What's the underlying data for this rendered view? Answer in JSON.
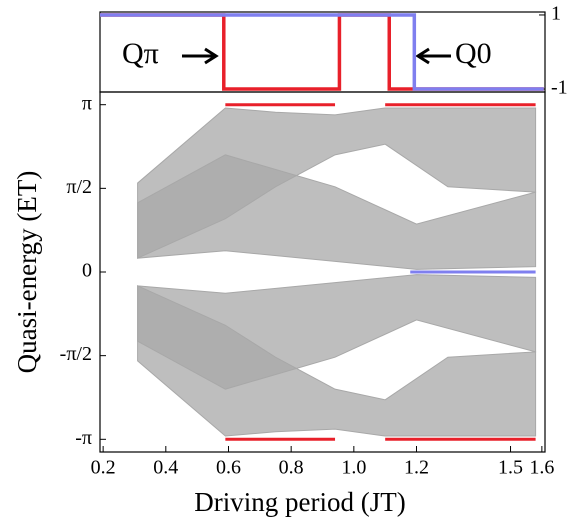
{
  "chart_data": [
    {
      "type": "step",
      "xlim": [
        0.19,
        1.61
      ],
      "ylim": [
        1.08,
        -1.08
      ],
      "yticks": [
        -1,
        1
      ],
      "series": [
        {
          "name": "Qπ",
          "color": "#e8202a",
          "x": [
            0.19,
            0.585,
            0.585,
            0.954,
            0.954,
            1.113,
            1.113,
            1.606
          ],
          "values": [
            1,
            1,
            -1,
            -1,
            1,
            1,
            -1,
            -1
          ]
        },
        {
          "name": "Q0",
          "color": "#7f7fef",
          "x": [
            0.19,
            1.193,
            1.193,
            1.606
          ],
          "values": [
            1,
            1,
            -1,
            -1
          ]
        }
      ]
    },
    {
      "type": "band",
      "xlabel": "Driving period (JT)",
      "ylabel": "Quasi-energy (ET)",
      "xlim": [
        0.19,
        1.61
      ],
      "ylim": [
        -3.38,
        3.38
      ],
      "xticks": [
        0.2,
        0.4,
        0.6,
        0.8,
        {
          "value": 1.0,
          "label": "1.0"
        },
        1.2,
        1.5,
        1.6
      ],
      "yticks": [
        {
          "value": 3.1416,
          "label": "π"
        },
        {
          "value": 1.5708,
          "label": "π/2"
        },
        0,
        {
          "value": -1.5708,
          "label": "-π/2"
        },
        {
          "value": -3.1416,
          "label": "-π"
        }
      ],
      "bands": [
        {
          "color": "#a8a8a8",
          "x": [
            0.31,
            0.59,
            0.75,
            0.94,
            1.1,
            1.3,
            1.58
          ],
          "upper": [
            1.67,
            3.08,
            3.0,
            2.95,
            3.08,
            3.08,
            3.08
          ],
          "lower": [
            0.26,
            1.0,
            1.6,
            2.2,
            2.4,
            1.6,
            1.5
          ]
        },
        {
          "color": "#a8a8a8",
          "x": [
            0.31,
            0.59,
            0.94,
            1.2,
            1.58
          ],
          "upper": [
            1.3,
            2.2,
            1.6,
            0.9,
            1.5
          ],
          "lower": [
            0.26,
            0.4,
            0.2,
            0.05,
            0.1
          ]
        },
        {
          "color": "#a8a8a8",
          "x": [
            0.31,
            0.59,
            0.75,
            0.94,
            1.1,
            1.3,
            1.58
          ],
          "upper": [
            -0.26,
            -1.0,
            -1.6,
            -2.2,
            -2.4,
            -1.6,
            -1.5
          ],
          "lower": [
            -1.67,
            -3.08,
            -3.0,
            -2.95,
            -3.08,
            -3.08,
            -3.08
          ]
        },
        {
          "color": "#a8a8a8",
          "x": [
            0.31,
            0.59,
            0.94,
            1.2,
            1.58
          ],
          "upper": [
            -0.26,
            -0.4,
            -0.2,
            -0.05,
            -0.1
          ],
          "lower": [
            -1.3,
            -2.2,
            -1.6,
            -0.9,
            -1.5
          ]
        }
      ],
      "series": [
        {
          "color": "#e8202a",
          "x": [
            0.59,
            0.94
          ],
          "values": [
            3.1416,
            3.1416
          ]
        },
        {
          "color": "#e8202a",
          "x": [
            1.1,
            1.58
          ],
          "values": [
            3.1416,
            3.1416
          ]
        },
        {
          "color": "#e8202a",
          "x": [
            0.59,
            0.94
          ],
          "values": [
            -3.1416,
            -3.1416
          ]
        },
        {
          "color": "#e8202a",
          "x": [
            1.1,
            1.58
          ],
          "values": [
            -3.1416,
            -3.1416
          ]
        },
        {
          "color": "#7f7fef",
          "x": [
            1.18,
            1.58
          ],
          "values": [
            0,
            0
          ]
        }
      ]
    }
  ]
}
